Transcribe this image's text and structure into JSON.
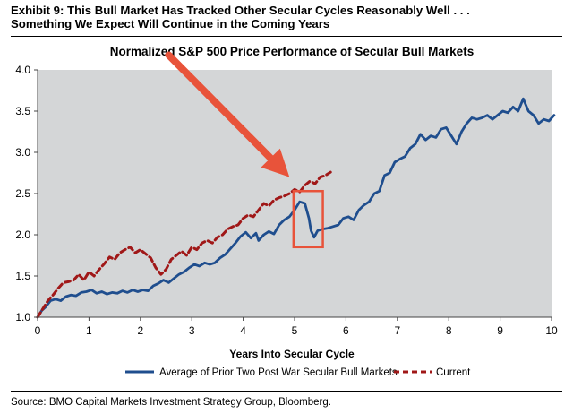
{
  "exhibit": {
    "line1": "Exhibit 9: This Bull Market Has Tracked Other Secular Cycles Reasonably Well . . .",
    "line2": "Something We Expect Will Continue in the Coming Years"
  },
  "source": "Source: BMO Capital Markets Investment Strategy Group, Bloomberg.",
  "colors": {
    "plot_background": "#d4d6d7",
    "average_line": "#1f4e8e",
    "current_line": "#a01818",
    "arrow": "#e8533a",
    "highlight_box": "#e8533a"
  },
  "chart_data": {
    "type": "line",
    "title": "Normalized S&P 500 Price Performance of Secular Bull Markets",
    "xlabel": "Years Into Secular Cycle",
    "ylabel": "",
    "xlim": [
      0,
      10
    ],
    "ylim": [
      1.0,
      4.0
    ],
    "x_ticks": [
      "0",
      "1",
      "2",
      "3",
      "4",
      "5",
      "6",
      "7",
      "8",
      "9",
      "10"
    ],
    "y_ticks": [
      "1.0",
      "1.5",
      "2.0",
      "2.5",
      "3.0",
      "3.5",
      "4.0"
    ],
    "grid": false,
    "legend_position": "bottom",
    "series": [
      {
        "name": "Average of Prior Two Post War Secular Bull Markets",
        "style": "solid",
        "points": [
          [
            0.0,
            1.0
          ],
          [
            0.08,
            1.08
          ],
          [
            0.15,
            1.12
          ],
          [
            0.25,
            1.2
          ],
          [
            0.35,
            1.22
          ],
          [
            0.45,
            1.2
          ],
          [
            0.55,
            1.25
          ],
          [
            0.65,
            1.27
          ],
          [
            0.75,
            1.26
          ],
          [
            0.85,
            1.3
          ],
          [
            0.95,
            1.31
          ],
          [
            1.05,
            1.33
          ],
          [
            1.15,
            1.29
          ],
          [
            1.25,
            1.31
          ],
          [
            1.35,
            1.28
          ],
          [
            1.45,
            1.3
          ],
          [
            1.55,
            1.29
          ],
          [
            1.65,
            1.32
          ],
          [
            1.75,
            1.3
          ],
          [
            1.85,
            1.33
          ],
          [
            1.95,
            1.31
          ],
          [
            2.05,
            1.33
          ],
          [
            2.15,
            1.32
          ],
          [
            2.25,
            1.38
          ],
          [
            2.35,
            1.41
          ],
          [
            2.45,
            1.45
          ],
          [
            2.55,
            1.42
          ],
          [
            2.65,
            1.47
          ],
          [
            2.75,
            1.52
          ],
          [
            2.85,
            1.55
          ],
          [
            2.95,
            1.6
          ],
          [
            3.05,
            1.64
          ],
          [
            3.15,
            1.62
          ],
          [
            3.25,
            1.66
          ],
          [
            3.35,
            1.64
          ],
          [
            3.45,
            1.66
          ],
          [
            3.55,
            1.72
          ],
          [
            3.65,
            1.76
          ],
          [
            3.75,
            1.83
          ],
          [
            3.85,
            1.9
          ],
          [
            3.95,
            1.98
          ],
          [
            4.05,
            2.03
          ],
          [
            4.15,
            1.96
          ],
          [
            4.25,
            2.02
          ],
          [
            4.3,
            1.93
          ],
          [
            4.4,
            2.0
          ],
          [
            4.5,
            2.04
          ],
          [
            4.6,
            2.01
          ],
          [
            4.7,
            2.12
          ],
          [
            4.8,
            2.18
          ],
          [
            4.9,
            2.22
          ],
          [
            5.0,
            2.3
          ],
          [
            5.1,
            2.4
          ],
          [
            5.2,
            2.38
          ],
          [
            5.28,
            2.2
          ],
          [
            5.32,
            2.05
          ],
          [
            5.38,
            1.97
          ],
          [
            5.45,
            2.05
          ],
          [
            5.55,
            2.07
          ],
          [
            5.65,
            2.08
          ],
          [
            5.75,
            2.1
          ],
          [
            5.85,
            2.12
          ],
          [
            5.95,
            2.2
          ],
          [
            6.05,
            2.22
          ],
          [
            6.15,
            2.18
          ],
          [
            6.25,
            2.3
          ],
          [
            6.35,
            2.36
          ],
          [
            6.45,
            2.4
          ],
          [
            6.55,
            2.5
          ],
          [
            6.65,
            2.53
          ],
          [
            6.75,
            2.72
          ],
          [
            6.85,
            2.75
          ],
          [
            6.95,
            2.88
          ],
          [
            7.05,
            2.92
          ],
          [
            7.15,
            2.95
          ],
          [
            7.25,
            3.05
          ],
          [
            7.35,
            3.1
          ],
          [
            7.45,
            3.22
          ],
          [
            7.55,
            3.15
          ],
          [
            7.65,
            3.2
          ],
          [
            7.75,
            3.18
          ],
          [
            7.85,
            3.28
          ],
          [
            7.95,
            3.3
          ],
          [
            8.05,
            3.2
          ],
          [
            8.15,
            3.1
          ],
          [
            8.25,
            3.25
          ],
          [
            8.35,
            3.35
          ],
          [
            8.45,
            3.42
          ],
          [
            8.55,
            3.4
          ],
          [
            8.65,
            3.42
          ],
          [
            8.75,
            3.45
          ],
          [
            8.85,
            3.4
          ],
          [
            8.95,
            3.45
          ],
          [
            9.05,
            3.5
          ],
          [
            9.15,
            3.48
          ],
          [
            9.25,
            3.55
          ],
          [
            9.35,
            3.5
          ],
          [
            9.45,
            3.65
          ],
          [
            9.55,
            3.5
          ],
          [
            9.65,
            3.45
          ],
          [
            9.75,
            3.35
          ],
          [
            9.85,
            3.4
          ],
          [
            9.95,
            3.38
          ],
          [
            10.05,
            3.45
          ]
        ]
      },
      {
        "name": "Current",
        "style": "dashed",
        "points": [
          [
            0.0,
            1.0
          ],
          [
            0.1,
            1.1
          ],
          [
            0.2,
            1.2
          ],
          [
            0.3,
            1.27
          ],
          [
            0.4,
            1.35
          ],
          [
            0.5,
            1.42
          ],
          [
            0.6,
            1.43
          ],
          [
            0.7,
            1.45
          ],
          [
            0.8,
            1.52
          ],
          [
            0.9,
            1.45
          ],
          [
            1.0,
            1.55
          ],
          [
            1.1,
            1.5
          ],
          [
            1.2,
            1.58
          ],
          [
            1.3,
            1.65
          ],
          [
            1.4,
            1.73
          ],
          [
            1.5,
            1.7
          ],
          [
            1.6,
            1.78
          ],
          [
            1.7,
            1.82
          ],
          [
            1.8,
            1.85
          ],
          [
            1.9,
            1.78
          ],
          [
            2.0,
            1.82
          ],
          [
            2.1,
            1.77
          ],
          [
            2.2,
            1.72
          ],
          [
            2.3,
            1.6
          ],
          [
            2.4,
            1.52
          ],
          [
            2.5,
            1.58
          ],
          [
            2.6,
            1.7
          ],
          [
            2.7,
            1.75
          ],
          [
            2.8,
            1.8
          ],
          [
            2.9,
            1.75
          ],
          [
            3.0,
            1.85
          ],
          [
            3.1,
            1.82
          ],
          [
            3.2,
            1.9
          ],
          [
            3.3,
            1.93
          ],
          [
            3.4,
            1.9
          ],
          [
            3.5,
            1.97
          ],
          [
            3.6,
            2.0
          ],
          [
            3.7,
            2.07
          ],
          [
            3.8,
            2.1
          ],
          [
            3.9,
            2.12
          ],
          [
            4.0,
            2.2
          ],
          [
            4.1,
            2.24
          ],
          [
            4.2,
            2.22
          ],
          [
            4.3,
            2.3
          ],
          [
            4.4,
            2.38
          ],
          [
            4.5,
            2.35
          ],
          [
            4.6,
            2.42
          ],
          [
            4.7,
            2.45
          ],
          [
            4.8,
            2.47
          ],
          [
            4.9,
            2.5
          ],
          [
            5.0,
            2.55
          ],
          [
            5.1,
            2.52
          ],
          [
            5.2,
            2.6
          ],
          [
            5.3,
            2.65
          ],
          [
            5.4,
            2.62
          ],
          [
            5.5,
            2.7
          ],
          [
            5.6,
            2.72
          ],
          [
            5.7,
            2.76
          ]
        ]
      }
    ]
  },
  "annotations": {
    "highlight_box": {
      "x_from": 4.98,
      "x_to": 5.55,
      "y_from": 1.85,
      "y_to": 2.53
    },
    "arrow": {
      "from": [
        2.55,
        4.18
      ],
      "to": [
        4.9,
        2.7
      ]
    }
  }
}
